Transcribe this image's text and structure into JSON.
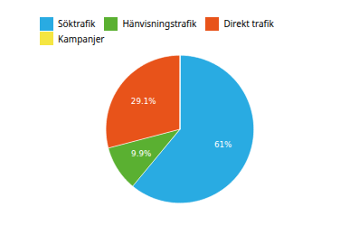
{
  "chart_data": {
    "type": "pie",
    "categories": [
      "Söktrafik",
      "Hänvisningstrafik",
      "Direkt trafik",
      "Kampanjer"
    ],
    "values": [
      61.0,
      9.9,
      29.1,
      0.001
    ],
    "value_labels": [
      "61%",
      "9.9%",
      "29.1%",
      null
    ],
    "colors": [
      "#29ABE2",
      "#5AB031",
      "#E8531A",
      "#F5E642"
    ],
    "data_labels": true,
    "legend": "top"
  }
}
